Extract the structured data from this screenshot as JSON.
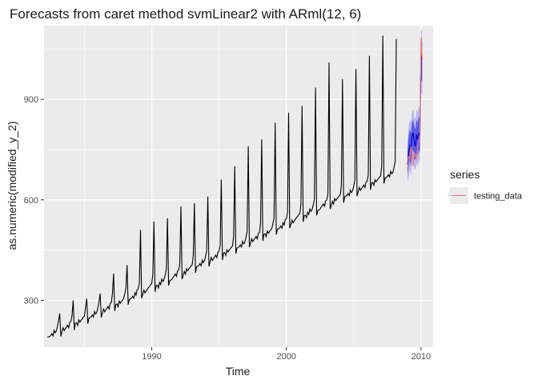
{
  "chart_data": {
    "type": "line",
    "title": "Forecasts from caret method svmLinear2 with ARml(12,  6)",
    "xlabel": "Time",
    "ylabel": "as.numeric(modified_y_2)",
    "xlim": [
      1982.0,
      2010.9
    ],
    "ylim": [
      160,
      1120
    ],
    "x_ticks": [
      1990,
      2000,
      2010
    ],
    "y_ticks": [
      300,
      600,
      900
    ],
    "legend": {
      "title": "series",
      "entries": [
        {
          "label": "testing_data",
          "color": "#F8766D"
        }
      ],
      "position": "right"
    },
    "colors": {
      "panel": "#EBEBEB",
      "history": "#000000",
      "forecast": "#0000CC",
      "interval80": "#5A5AEA",
      "interval95": "#B8B8F4",
      "testing": "#F8766D"
    },
    "history": {
      "start_year": 1982.25,
      "frequency": 12,
      "base_start": 195,
      "base_end": 688,
      "peak_month_index": 11,
      "yearly_peaks": [
        260,
        300,
        305,
        320,
        380,
        405,
        510,
        535,
        545,
        580,
        590,
        610,
        660,
        700,
        760,
        780,
        830,
        860,
        880,
        935,
        1010,
        960,
        990,
        1030,
        1090,
        1080
      ]
    },
    "forecast": {
      "x": [
        2009.0,
        2009.083,
        2009.167,
        2009.25,
        2009.333,
        2009.417,
        2009.5,
        2009.583,
        2009.667,
        2009.75,
        2009.833,
        2009.917,
        2010.0,
        2010.083
      ],
      "y": [
        705,
        740,
        760,
        750,
        790,
        800,
        770,
        760,
        795,
        780,
        800,
        790,
        1030,
        1020
      ],
      "lo80": [
        670,
        700,
        720,
        700,
        740,
        750,
        720,
        720,
        740,
        730,
        750,
        740,
        960,
        950
      ],
      "hi80": [
        745,
        790,
        810,
        800,
        830,
        840,
        820,
        810,
        840,
        830,
        850,
        840,
        1080,
        1070
      ],
      "lo95": [
        650,
        670,
        690,
        670,
        710,
        720,
        690,
        690,
        710,
        700,
        720,
        710,
        920,
        910
      ],
      "hi95": [
        770,
        820,
        840,
        830,
        860,
        870,
        850,
        840,
        870,
        860,
        880,
        870,
        1110,
        1100
      ]
    },
    "testing_data": {
      "x": [
        2009.0,
        2009.083,
        2009.167,
        2009.25,
        2009.333,
        2009.417,
        2009.5,
        2009.583,
        2009.667,
        2009.75,
        2009.833,
        2009.917,
        2010.0,
        2010.083
      ],
      "y": [
        690,
        730,
        720,
        760,
        745,
        700,
        740,
        735,
        720,
        760,
        770,
        800,
        1085,
        1020
      ]
    }
  }
}
